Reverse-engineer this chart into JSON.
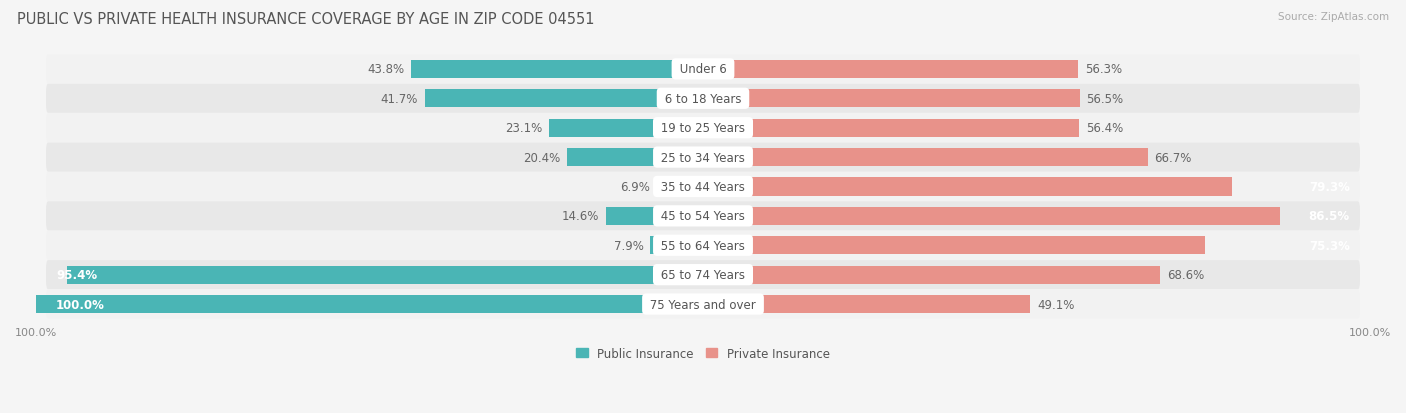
{
  "title": "PUBLIC VS PRIVATE HEALTH INSURANCE COVERAGE BY AGE IN ZIP CODE 04551",
  "source": "Source: ZipAtlas.com",
  "categories": [
    "Under 6",
    "6 to 18 Years",
    "19 to 25 Years",
    "25 to 34 Years",
    "35 to 44 Years",
    "45 to 54 Years",
    "55 to 64 Years",
    "65 to 74 Years",
    "75 Years and over"
  ],
  "public_values": [
    43.8,
    41.7,
    23.1,
    20.4,
    6.9,
    14.6,
    7.9,
    95.4,
    100.0
  ],
  "private_values": [
    56.3,
    56.5,
    56.4,
    66.7,
    79.3,
    86.5,
    75.3,
    68.6,
    49.1
  ],
  "public_color": "#4ab5b5",
  "private_color": "#e8928a",
  "row_bg_color_light": "#f2f2f2",
  "row_bg_color_dark": "#e8e8e8",
  "row_separator_color": "#ffffff",
  "background_color": "#f5f5f5",
  "title_color": "#555555",
  "source_color": "#aaaaaa",
  "label_color": "#555555",
  "value_color_outside": "#666666",
  "value_color_inside": "#ffffff",
  "title_fontsize": 10.5,
  "source_fontsize": 7.5,
  "label_fontsize": 8.5,
  "value_fontsize": 8.5,
  "legend_fontsize": 8.5,
  "axis_label_fontsize": 8,
  "max_value": 100.0,
  "inside_threshold_pub": 88,
  "inside_threshold_priv": 75
}
